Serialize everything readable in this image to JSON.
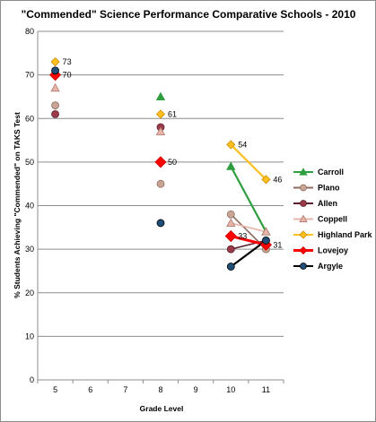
{
  "chart_data": {
    "type": "line",
    "title": "\"Commended\" Science Performance Comparative Schools - 2010",
    "xlabel": "Grade Level",
    "ylabel": "% Students Achieving \"Commended\" on TAKS Test",
    "x_categories": [
      "5",
      "6",
      "7",
      "8",
      "9",
      "10",
      "11"
    ],
    "ylim": [
      0,
      80
    ],
    "y_ticks": [
      "0",
      "10",
      "20",
      "30",
      "40",
      "50",
      "60",
      "70",
      "80"
    ],
    "grid": true,
    "legend_position": "right",
    "series": [
      {
        "name": "Carroll",
        "color": "#2e9e3e",
        "marker": "triangle",
        "points": [
          [
            8,
            65
          ],
          [
            10,
            49
          ],
          [
            11,
            34
          ]
        ]
      },
      {
        "name": "Plano",
        "color": "#c9a595",
        "stroke": "#8c6b5e",
        "marker": "circle",
        "points": [
          [
            5,
            63
          ],
          [
            8,
            45
          ],
          [
            10,
            38
          ],
          [
            11,
            30
          ]
        ]
      },
      {
        "name": "Allen",
        "color": "#9b3b4a",
        "stroke": "#5a1f2a",
        "marker": "circle",
        "points": [
          [
            5,
            61
          ],
          [
            8,
            58
          ],
          [
            10,
            30
          ],
          [
            11,
            32
          ]
        ]
      },
      {
        "name": "Coppell",
        "color": "#e8b4a8",
        "stroke": "#b07a70",
        "marker": "triangle",
        "points": [
          [
            5,
            67
          ],
          [
            8,
            57
          ],
          [
            10,
            36
          ],
          [
            11,
            34
          ]
        ]
      },
      {
        "name": "Highland Park",
        "color": "#ffc020",
        "stroke": "#d08a00",
        "marker": "diamond",
        "points": [
          [
            5,
            73
          ],
          [
            8,
            61
          ],
          [
            10,
            54
          ],
          [
            11,
            46
          ]
        ]
      },
      {
        "name": "Lovejoy",
        "color": "#ff0000",
        "stroke": "#cc0000",
        "marker": "diamond",
        "points": [
          [
            5,
            70
          ],
          [
            8,
            50
          ],
          [
            10,
            33
          ],
          [
            11,
            31
          ]
        ]
      },
      {
        "name": "Argyle",
        "color": "#1f4e79",
        "stroke": "#000000",
        "marker": "circle",
        "points": [
          [
            5,
            71
          ],
          [
            8,
            36
          ],
          [
            10,
            26
          ],
          [
            11,
            32
          ]
        ]
      }
    ],
    "data_labels": [
      {
        "text": "73",
        "x": 5,
        "y": 73
      },
      {
        "text": "70",
        "x": 5,
        "y": 70
      },
      {
        "text": "61",
        "x": 8,
        "y": 61
      },
      {
        "text": "50",
        "x": 8,
        "y": 50
      },
      {
        "text": "54",
        "x": 10,
        "y": 54
      },
      {
        "text": "46",
        "x": 11,
        "y": 46
      },
      {
        "text": "33",
        "x": 10,
        "y": 33
      },
      {
        "text": "31",
        "x": 11,
        "y": 31
      }
    ]
  }
}
